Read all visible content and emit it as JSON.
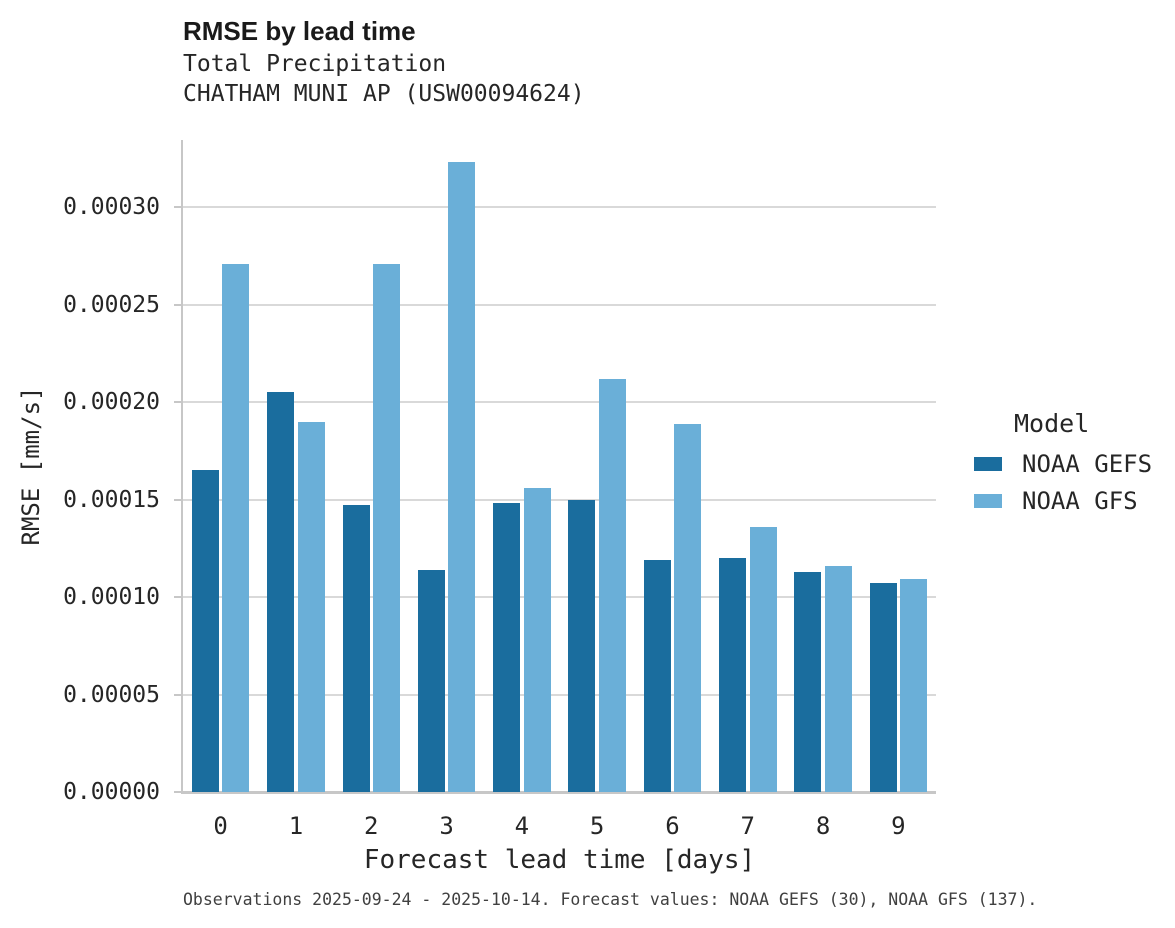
{
  "colors": {
    "background": "#ffffff",
    "noaa_gefs": "#1a6d9e",
    "noaa_gfs": "#6aafd8",
    "gridline": "#d9d9d9",
    "axis_spine": "#c7c7c7",
    "text": "#262626",
    "caption_text": "#404040"
  },
  "chart_data": {
    "type": "bar",
    "title": "RMSE by lead time",
    "subtitle1": "Total Precipitation",
    "subtitle2": "CHATHAM MUNI AP (USW00094624)",
    "xlabel": "Forecast lead time [days]",
    "ylabel": "RMSE [mm/s]",
    "categories": [
      "0",
      "1",
      "2",
      "3",
      "4",
      "5",
      "6",
      "7",
      "8",
      "9"
    ],
    "series": [
      {
        "name": "NOAA GEFS",
        "color": "#1a6d9e",
        "values": [
          0.000165,
          0.000205,
          0.000147,
          0.000114,
          0.000148,
          0.00015,
          0.000119,
          0.00012,
          0.000113,
          0.000107
        ]
      },
      {
        "name": "NOAA GFS",
        "color": "#6aafd8",
        "values": [
          0.000271,
          0.00019,
          0.000271,
          0.000323,
          0.000156,
          0.000212,
          0.000189,
          0.000136,
          0.000116,
          0.000109
        ]
      }
    ],
    "ylim": [
      0,
      0.0003344
    ],
    "yticks": [
      0,
      5e-05,
      0.0001,
      0.00015,
      0.0002,
      0.00025,
      0.0003
    ],
    "ytick_labels": [
      "0.00000",
      "0.00005",
      "0.00010",
      "0.00015",
      "0.00020",
      "0.00025",
      "0.00030"
    ],
    "grid": "horizontal",
    "legend": {
      "title": "Model",
      "position": "right-middle"
    },
    "caption": "Observations 2025-09-24 - 2025-10-14. Forecast values: NOAA GEFS (30), NOAA GFS (137)."
  }
}
